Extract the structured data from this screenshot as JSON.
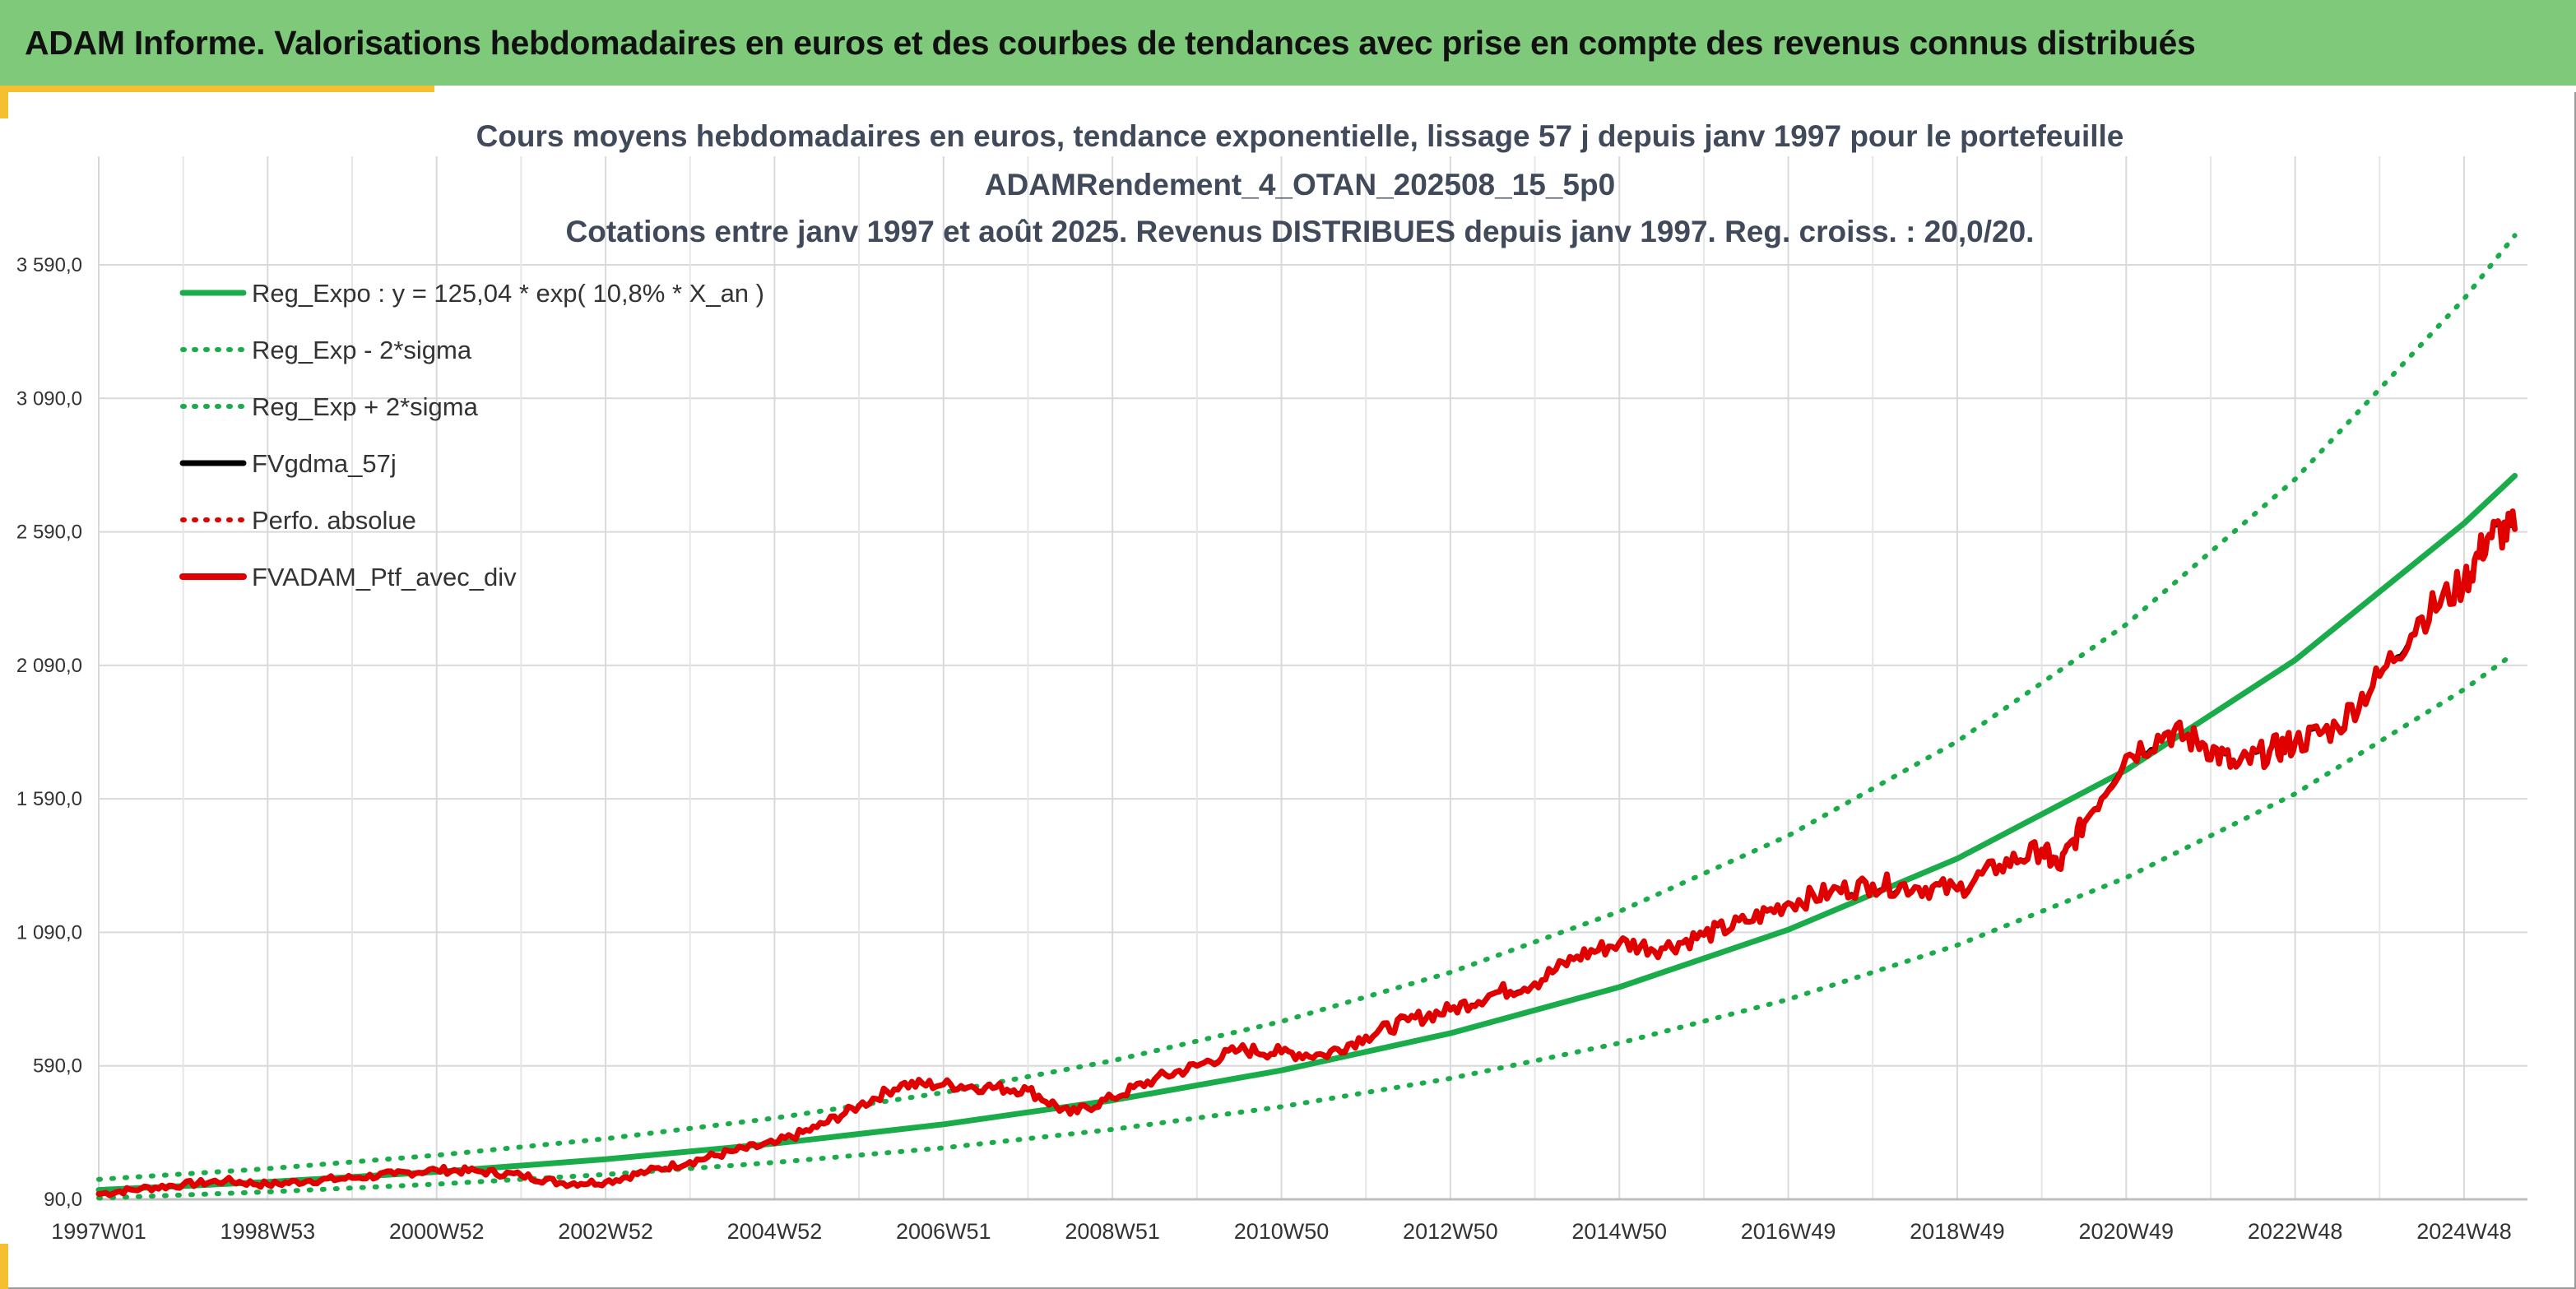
{
  "header": {
    "title": "ADAM Informe. Valorisations hebdomadaires en euros et des courbes de tendances avec prise en compte des revenus connus distribués"
  },
  "chart_data": {
    "type": "line",
    "title": [
      "Cours moyens hebdomadaires en euros, tendance exponentielle, lissage 57 j depuis janv 1997 pour le portefeuille",
      "ADAMRendement_4_OTAN_202508_15_5p0",
      "Cotations entre janv 1997 et août 2025. Revenus DISTRIBUES depuis janv 1997. Reg. croiss. : 20,0/20."
    ],
    "xlabel": "",
    "ylabel": "",
    "x_range": [
      "1997W01",
      "2025W33"
    ],
    "ylim": [
      90,
      3590
    ],
    "y_ticks": [
      "90,0",
      "590,0",
      "1 090,0",
      "1 590,0",
      "2 090,0",
      "2 590,0",
      "3 090,0",
      "3 590,0"
    ],
    "y_tick_values": [
      90,
      590,
      1090,
      1590,
      2090,
      2590,
      3090,
      3590
    ],
    "x_ticks": [
      "1997W01",
      "1998W53",
      "2000W52",
      "2002W52",
      "2004W52",
      "2006W51",
      "2008W51",
      "2010W50",
      "2012W50",
      "2014W50",
      "2016W49",
      "2018W49",
      "2020W49",
      "2022W48",
      "2024W48"
    ],
    "x_tick_years": [
      1997.0,
      1999.0,
      2001.0,
      2003.0,
      2005.0,
      2007.0,
      2009.0,
      2011.0,
      2013.0,
      2015.0,
      2017.0,
      2019.0,
      2021.0,
      2023.0,
      2025.0
    ],
    "grid": "vertical and horizontal",
    "legend_position": "top-left",
    "legend": [
      {
        "label": "Reg_Expo : y = 125,04 * exp( 10,8% *  X_an )",
        "color": "#1aab4a",
        "style": "solid"
      },
      {
        "label": "Reg_Exp - 2*sigma",
        "color": "#1aab4a",
        "style": "dotted"
      },
      {
        "label": "Reg_Exp + 2*sigma",
        "color": "#1aab4a",
        "style": "dotted"
      },
      {
        "label": "FVgdma_57j",
        "color": "#000000",
        "style": "solid"
      },
      {
        "label": "Perfo. absolue",
        "color": "#e00000",
        "style": "dotted"
      },
      {
        "label": "FVADAM_Ptf_avec_div",
        "color": "#e00000",
        "style": "solid"
      }
    ],
    "series": [
      {
        "name": "Reg_Expo : y = 125,04 * exp( 10,8% *  X_an )",
        "x": [
          1997.0,
          1999.0,
          2001.0,
          2003.0,
          2005.0,
          2007.0,
          2009.0,
          2011.0,
          2013.0,
          2015.0,
          2017.0,
          2019.0,
          2021.0,
          2023.0,
          2025.0,
          2025.6
        ],
        "values": [
          125,
          155,
          193,
          240,
          299,
          371,
          461,
          573,
          712,
          885,
          1100,
          1366,
          1698,
          2110,
          2622,
          2800
        ]
      },
      {
        "name": "Reg_Exp - 2*sigma",
        "x": [
          1997.0,
          1999.0,
          2001.0,
          2003.0,
          2005.0,
          2007.0,
          2009.0,
          2011.0,
          2013.0,
          2015.0,
          2017.0,
          2019.0,
          2021.0,
          2023.0,
          2025.0,
          2025.6
        ],
        "values": [
          95,
          118,
          147,
          183,
          228,
          283,
          352,
          437,
          543,
          675,
          839,
          1042,
          1295,
          1609,
          2000,
          2136
        ]
      },
      {
        "name": "Reg_Exp + 2*sigma",
        "x": [
          1997.0,
          1999.0,
          2001.0,
          2003.0,
          2005.0,
          2007.0,
          2009.0,
          2011.0,
          2013.0,
          2015.0,
          2017.0,
          2019.0,
          2021.0,
          2023.0,
          2025.0,
          2025.6
        ],
        "values": [
          165,
          205,
          255,
          317,
          394,
          490,
          609,
          756,
          940,
          1168,
          1452,
          1805,
          2243,
          2787,
          3463,
          3700
        ]
      },
      {
        "name": "FVgdma_57j",
        "x": [
          1997.0,
          1997.5,
          1998.0,
          1998.5,
          1999.0,
          1999.5,
          2000.0,
          2000.5,
          2001.0,
          2001.5,
          2002.0,
          2002.5,
          2003.0,
          2003.5,
          2004.0,
          2004.5,
          2005.0,
          2005.5,
          2006.0,
          2006.5,
          2007.0,
          2007.5,
          2008.0,
          2008.5,
          2009.0,
          2009.5,
          2010.0,
          2010.5,
          2011.0,
          2011.5,
          2012.0,
          2012.5,
          2013.0,
          2013.5,
          2014.0,
          2014.5,
          2015.0,
          2015.5,
          2016.0,
          2016.5,
          2017.0,
          2017.5,
          2018.0,
          2018.5,
          2019.0,
          2019.5,
          2020.0,
          2020.2,
          2020.5,
          2021.0,
          2021.5,
          2021.9,
          2022.3,
          2022.7,
          2023.0,
          2023.5,
          2024.0,
          2024.5,
          2025.0,
          2025.3,
          2025.6
        ],
        "values": [
          110,
          130,
          145,
          160,
          145,
          160,
          170,
          185,
          200,
          195,
          180,
          150,
          155,
          195,
          230,
          270,
          300,
          360,
          440,
          520,
          520,
          510,
          500,
          410,
          470,
          540,
          590,
          650,
          640,
          630,
          700,
          760,
          800,
          860,
          900,
          1000,
          1050,
          1030,
          1080,
          1130,
          1200,
          1240,
          1270,
          1260,
          1250,
          1340,
          1400,
          1330,
          1500,
          1750,
          1840,
          1800,
          1710,
          1770,
          1800,
          1860,
          2050,
          2270,
          2400,
          2580,
          2600
        ]
      },
      {
        "name": "FVADAM_Ptf_avec_div",
        "x": [
          1997.0,
          1997.5,
          1998.0,
          1998.5,
          1999.0,
          1999.5,
          2000.0,
          2000.5,
          2001.0,
          2001.5,
          2002.0,
          2002.5,
          2003.0,
          2003.5,
          2004.0,
          2004.5,
          2005.0,
          2005.5,
          2006.0,
          2006.5,
          2007.0,
          2007.5,
          2008.0,
          2008.5,
          2009.0,
          2009.5,
          2010.0,
          2010.5,
          2011.0,
          2011.5,
          2012.0,
          2012.5,
          2013.0,
          2013.5,
          2014.0,
          2014.5,
          2015.0,
          2015.5,
          2016.0,
          2016.5,
          2017.0,
          2017.5,
          2018.0,
          2018.5,
          2019.0,
          2019.5,
          2020.0,
          2020.2,
          2020.5,
          2021.0,
          2021.5,
          2021.9,
          2022.3,
          2022.7,
          2023.0,
          2023.5,
          2024.0,
          2024.5,
          2025.0,
          2025.3,
          2025.6
        ],
        "values": [
          110,
          130,
          145,
          160,
          145,
          160,
          170,
          185,
          200,
          195,
          180,
          150,
          155,
          195,
          230,
          270,
          300,
          360,
          440,
          520,
          520,
          510,
          500,
          410,
          470,
          540,
          590,
          650,
          640,
          630,
          700,
          760,
          800,
          860,
          900,
          1000,
          1050,
          1030,
          1080,
          1130,
          1200,
          1240,
          1270,
          1260,
          1250,
          1340,
          1400,
          1330,
          1500,
          1750,
          1840,
          1800,
          1710,
          1770,
          1800,
          1860,
          2050,
          2270,
          2400,
          2580,
          2600
        ]
      }
    ]
  }
}
